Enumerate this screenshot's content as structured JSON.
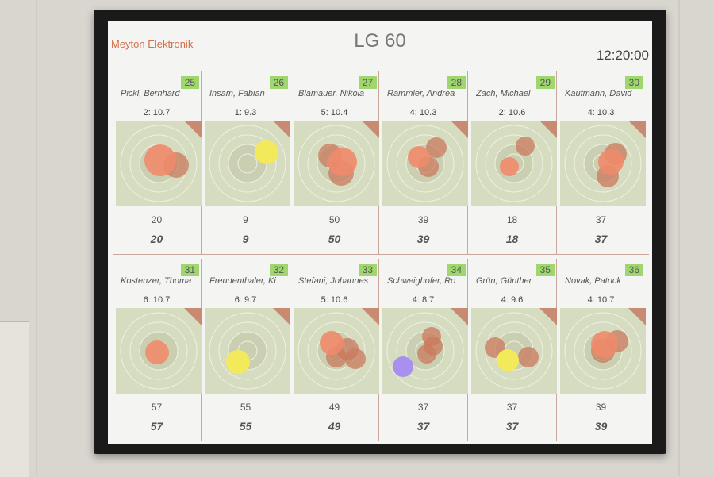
{
  "app": {
    "brand": "Meyton Elektronik",
    "title": "LG 60",
    "clock": "12:20:00"
  },
  "colors": {
    "badge": "#9fd66e",
    "target": "#d6dcc0",
    "shot_current": "#f08a6b",
    "shot_previous": "#c9795e",
    "shot_yellow": "#f2ea5a",
    "shot_blue": "#a98ff0"
  },
  "shooters": [
    {
      "number": "25",
      "name": "Pickl, Bernhard",
      "shot": "2:  10.7",
      "score": "20",
      "total": "20",
      "shot_color": "salmon"
    },
    {
      "number": "26",
      "name": "Insam, Fabian",
      "shot": "1:   9.3",
      "score": "9",
      "total": "9",
      "shot_color": "yellow"
    },
    {
      "number": "27",
      "name": "Blamauer, Nikola",
      "shot": "5:  10.4",
      "score": "50",
      "total": "50",
      "shot_color": "salmon"
    },
    {
      "number": "28",
      "name": "Rammler, Andrea",
      "shot": "4:  10.3",
      "score": "39",
      "total": "39",
      "shot_color": "salmon"
    },
    {
      "number": "29",
      "name": "Zach, Michael",
      "shot": "2:  10.6",
      "score": "18",
      "total": "18",
      "shot_color": "salmon"
    },
    {
      "number": "30",
      "name": "Kaufmann, David",
      "shot": "4:  10.3",
      "score": "37",
      "total": "37",
      "shot_color": "salmon"
    },
    {
      "number": "31",
      "name": "Kostenzer, Thoma",
      "shot": "6:  10.7",
      "score": "57",
      "total": "57",
      "shot_color": "salmon"
    },
    {
      "number": "32",
      "name": "Freudenthaler, Ki",
      "shot": "6:   9.7",
      "score": "55",
      "total": "55",
      "shot_color": "yellow"
    },
    {
      "number": "33",
      "name": "Stefani, Johannes",
      "shot": "5:  10.6",
      "score": "49",
      "total": "49",
      "shot_color": "salmon"
    },
    {
      "number": "34",
      "name": "Schweighofer, Ro",
      "shot": "4:   8.7",
      "score": "37",
      "total": "37",
      "shot_color": "blue"
    },
    {
      "number": "35",
      "name": "Grün, Günther",
      "shot": "4:   9.6",
      "score": "37",
      "total": "37",
      "shot_color": "yellow"
    },
    {
      "number": "36",
      "name": "Novak, Patrick",
      "shot": "4:  10.7",
      "score": "39",
      "total": "39",
      "shot_color": "salmon"
    }
  ]
}
